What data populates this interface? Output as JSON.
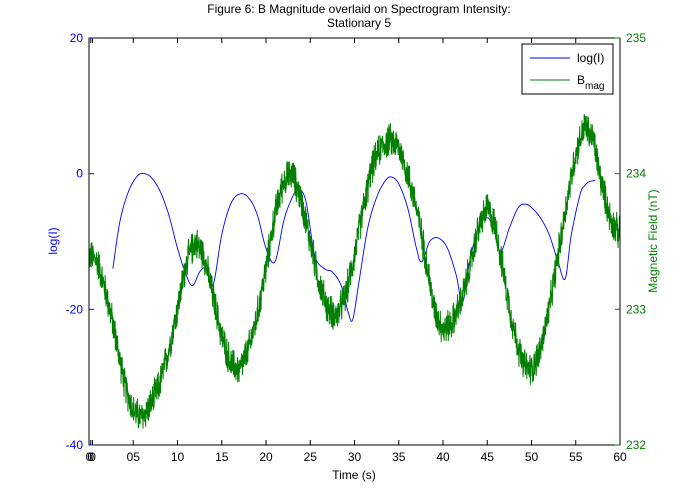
{
  "chart_data": {
    "type": "line",
    "title_lines": [
      "Figure 6: B Magnitude overlaid on Spectrogram Intensity:",
      "Stationary 5"
    ],
    "xlabel": "Time (s)",
    "ylabel_left": "log(I)",
    "ylabel_right": "Magnetic Field (nT)",
    "xlim": [
      0,
      60
    ],
    "ylim_left": [
      -40,
      20
    ],
    "ylim_right": [
      232,
      235
    ],
    "x_tick_labels": [
      "0",
      "0",
      "0",
      "05",
      "10",
      "15",
      "20",
      "25",
      "30",
      "35",
      "40",
      "45",
      "50",
      "55",
      "60"
    ],
    "x_tick_values": [
      0,
      0.2,
      0.4,
      5,
      10,
      15,
      20,
      25,
      30,
      35,
      40,
      45,
      50,
      55,
      60
    ],
    "y_left_ticks": [
      -40,
      -20,
      0,
      20
    ],
    "y_left_tick_labels": [
      "-40",
      "-20",
      "0",
      "20"
    ],
    "y_right_ticks": [
      232,
      233,
      234,
      235
    ],
    "y_right_tick_labels": [
      "232",
      "233",
      "234",
      "235"
    ],
    "grid": false,
    "legend_position": "top-right",
    "legend": {
      "logI": "log(I)",
      "bmag_main": "B",
      "bmag_sub": "mag"
    },
    "colors": {
      "logI": "#0000ff",
      "bmag": "#007f00",
      "axis_left": "#0000ff",
      "axis_right": "#007f00",
      "frame": "#000000"
    },
    "series": [
      {
        "key": "logI",
        "axis": "left",
        "x": [
          2.7,
          3.5,
          4.5,
          5.5,
          6.2,
          7.0,
          8.0,
          9.0,
          10.0,
          11.0,
          11.7,
          12.5,
          13.2,
          14.0,
          15.0,
          16.0,
          17.0,
          18.0,
          19.0,
          20.0,
          21.0,
          22.0,
          22.8,
          23.6,
          24.5,
          25.5,
          26.6,
          27.5,
          28.5,
          29.3,
          29.8,
          30.5,
          31.5,
          32.5,
          33.5,
          34.2,
          35.0,
          36.0,
          37.0,
          37.6,
          38.5,
          39.5,
          40.5,
          41.5,
          42.2,
          43.0,
          44.0,
          45.0,
          45.7,
          46.5,
          47.5,
          48.5,
          49.3,
          50.0,
          51.0,
          52.0,
          53.0,
          53.8,
          54.5,
          55.5,
          56.0,
          56.5,
          57.2
        ],
        "y": [
          -14,
          -7,
          -2.5,
          -0.3,
          0,
          -0.5,
          -2.5,
          -6,
          -11,
          -15,
          -16.5,
          -14.5,
          -14,
          -16.5,
          -9,
          -4.5,
          -3,
          -3.5,
          -6,
          -11,
          -13,
          -7,
          -4,
          -2.3,
          -4,
          -12,
          -14,
          -14.5,
          -16.5,
          -20.5,
          -21.5,
          -16,
          -8,
          -3.5,
          -1,
          -0.5,
          -1.5,
          -5,
          -11,
          -13,
          -10,
          -9.5,
          -11,
          -15,
          -19,
          -13,
          -8,
          -6.5,
          -8,
          -11.5,
          -8,
          -5,
          -4.5,
          -5,
          -6.5,
          -9,
          -13,
          -15.5,
          -9,
          -3,
          -1.8,
          -1.2,
          -1.0
        ]
      },
      {
        "key": "bmag",
        "axis": "right",
        "x": [
          0,
          1,
          2,
          3,
          4,
          5,
          6,
          7,
          8,
          9,
          10,
          11,
          12,
          13,
          14,
          15,
          16,
          17,
          18,
          19,
          20,
          21,
          22,
          23,
          24,
          25,
          26,
          27,
          28,
          29,
          30,
          31,
          32,
          33,
          34,
          35,
          36,
          37,
          38,
          39,
          40,
          41,
          42,
          43,
          44,
          45,
          46,
          47,
          48,
          49,
          50,
          51,
          52,
          53,
          54,
          55,
          56,
          57,
          58,
          59,
          60
        ],
        "y": [
          233.4,
          233.35,
          233.1,
          232.8,
          232.45,
          232.25,
          232.2,
          232.3,
          232.45,
          232.7,
          233.0,
          233.35,
          233.5,
          233.4,
          233.1,
          232.8,
          232.6,
          232.55,
          232.7,
          232.95,
          233.3,
          233.7,
          233.95,
          234.0,
          233.8,
          233.5,
          233.2,
          233.0,
          232.95,
          233.1,
          233.4,
          233.75,
          234.05,
          234.2,
          234.25,
          234.2,
          234.0,
          233.75,
          233.4,
          233.0,
          232.85,
          232.9,
          233.05,
          233.3,
          233.6,
          233.75,
          233.6,
          233.2,
          232.85,
          232.6,
          232.55,
          232.7,
          233.0,
          233.4,
          233.8,
          234.15,
          234.35,
          234.25,
          233.9,
          233.65,
          233.55
        ],
        "noise_amplitude": 0.14
      }
    ]
  }
}
